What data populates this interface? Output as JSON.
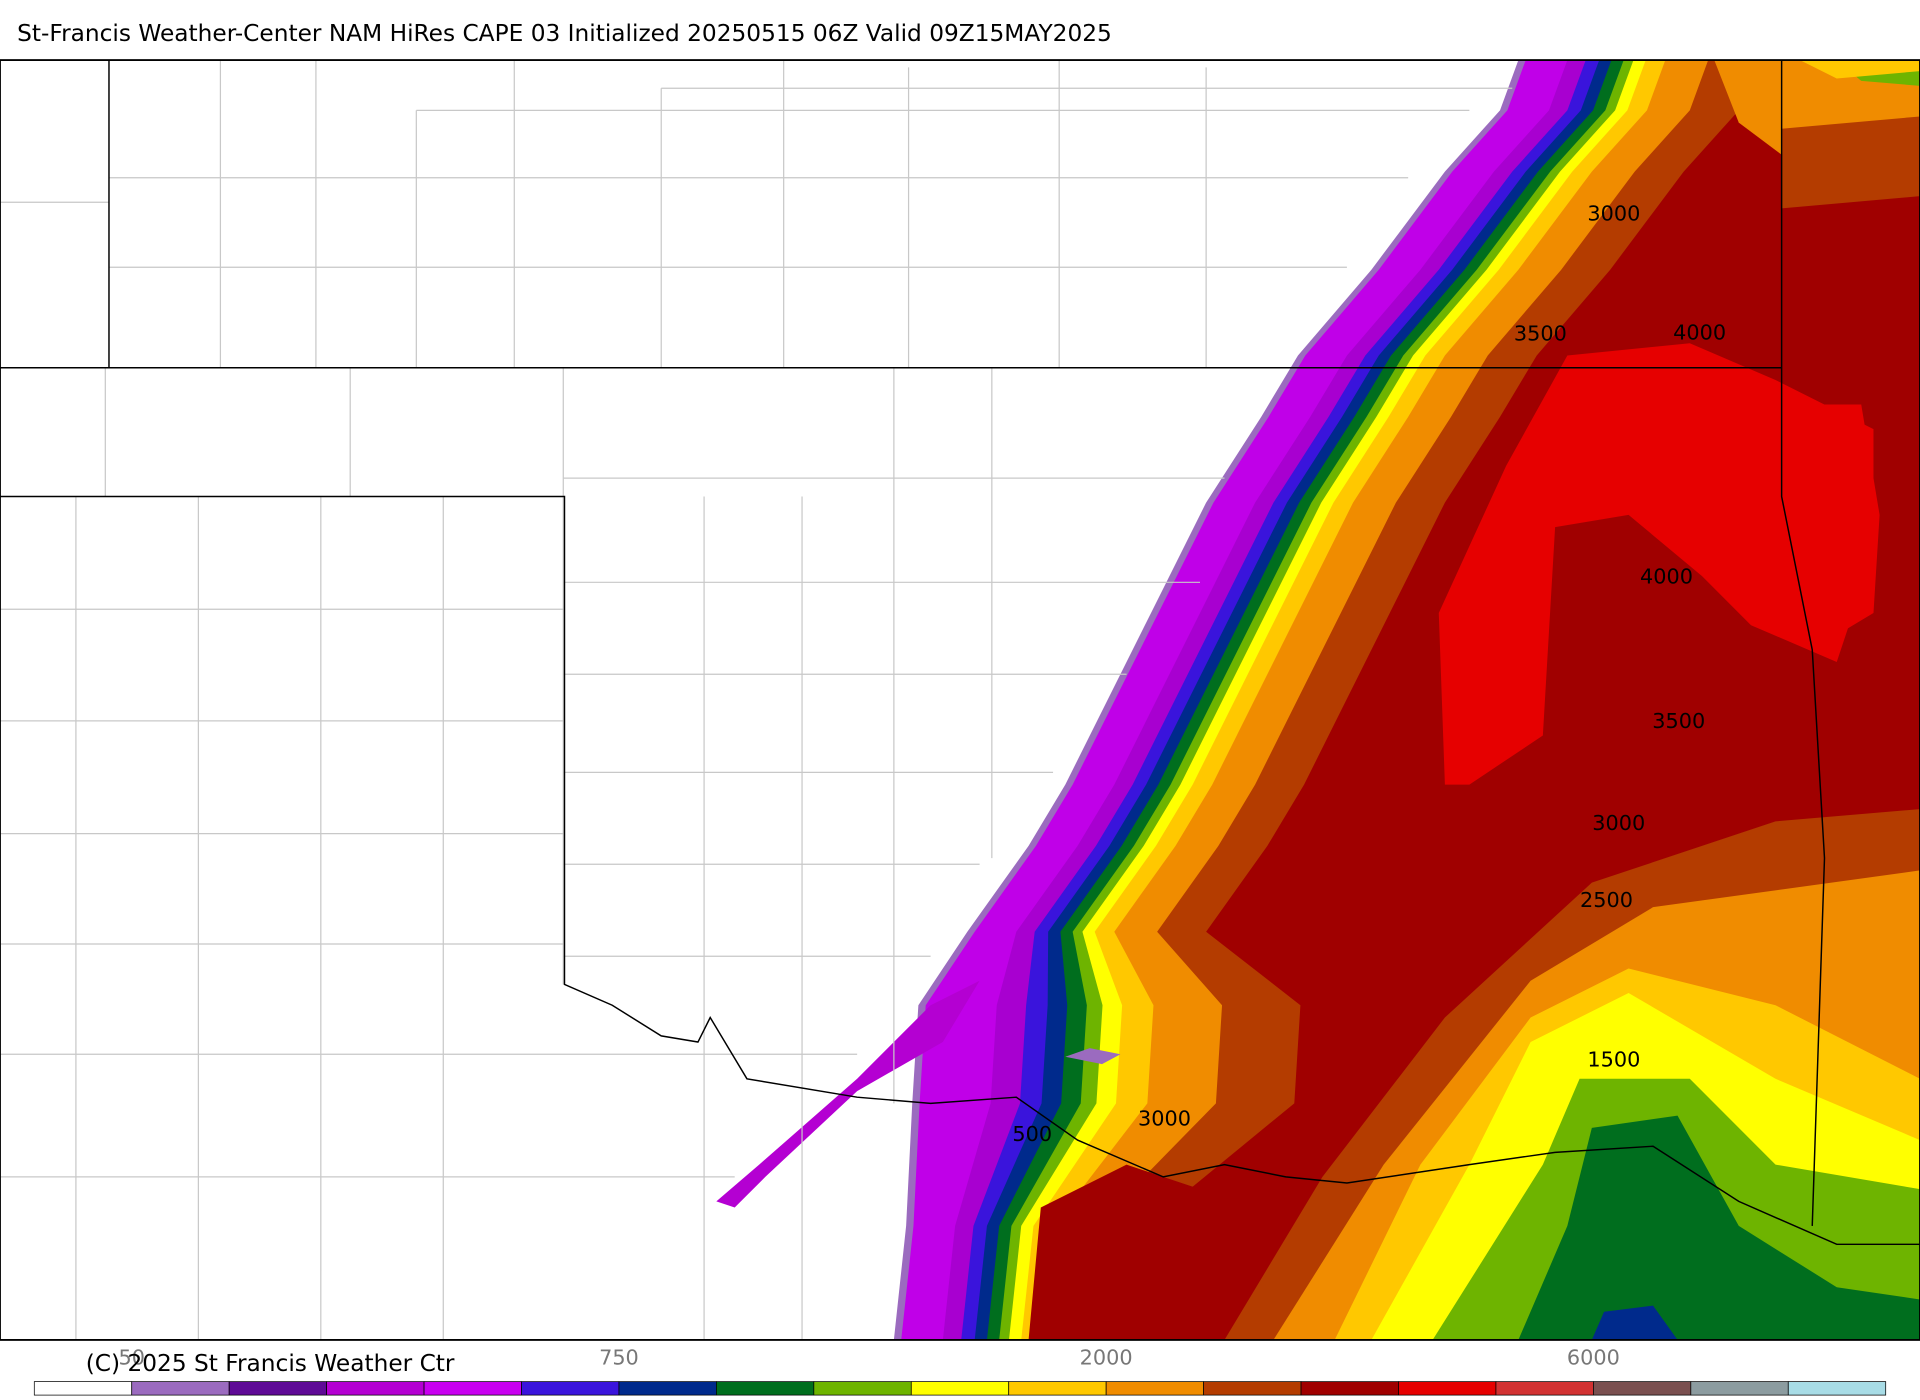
{
  "header": {
    "title": "St-Francis Weather-Center NAM HiRes CAPE  03 Initialized 20250515 06Z Valid 09Z15MAY2025"
  },
  "map": {
    "contour_labels": [
      "3000",
      "3500",
      "4000",
      "4000",
      "3500",
      "3000",
      "2500",
      "1500",
      "3000",
      "500"
    ]
  },
  "colorbar": {
    "labels": [
      "50",
      "750",
      "2000",
      "6000"
    ],
    "colors": [
      "#ffffff",
      "#9b6bbf",
      "#5f0a96",
      "#b400d2",
      "#c800f0",
      "#3a14dc",
      "#002a8c",
      "#006e1e",
      "#6eb400",
      "#ffff00",
      "#ffc800",
      "#f08c00",
      "#b43c00",
      "#a00000",
      "#e60000",
      "#d23232",
      "#7a5050",
      "#8c9ca0",
      "#a8dce6"
    ]
  },
  "footer": {
    "copyright": "(C) 2025 St Francis Weather Ctr"
  }
}
